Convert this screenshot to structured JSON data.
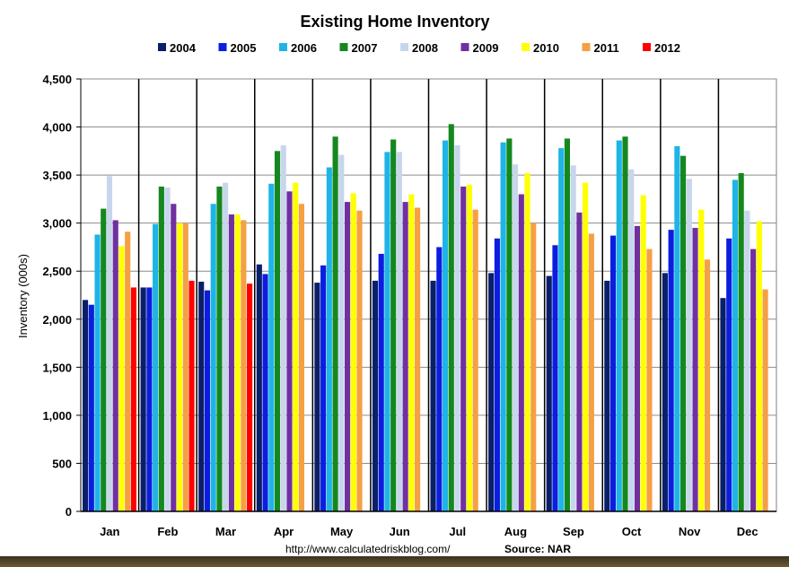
{
  "chart_data": {
    "type": "bar",
    "title": "Existing Home Inventory",
    "ylabel": "Inventory (000s)",
    "xlabel": "",
    "ylim": [
      0,
      4500
    ],
    "yticks": [
      0,
      500,
      1000,
      1500,
      2000,
      2500,
      3000,
      3500,
      4000,
      4500
    ],
    "ytick_labels": [
      "0",
      "500",
      "1,000",
      "1,500",
      "2,000",
      "2,500",
      "3,000",
      "3,500",
      "4,000",
      "4,500"
    ],
    "grid": "horizontal",
    "legend_position": "top",
    "categories": [
      "Jan",
      "Feb",
      "Mar",
      "Apr",
      "May",
      "Jun",
      "Jul",
      "Aug",
      "Sep",
      "Oct",
      "Nov",
      "Dec"
    ],
    "series": [
      {
        "name": "2004",
        "color": "#0a1f6b",
        "values": [
          2200,
          2330,
          2390,
          2570,
          2380,
          2400,
          2400,
          2480,
          2450,
          2400,
          2480,
          2220
        ]
      },
      {
        "name": "2005",
        "color": "#0b1ee0",
        "values": [
          2150,
          2330,
          2300,
          2470,
          2560,
          2680,
          2750,
          2840,
          2770,
          2870,
          2930,
          2840
        ]
      },
      {
        "name": "2006",
        "color": "#1eb4e6",
        "values": [
          2880,
          2990,
          3200,
          3410,
          3580,
          3740,
          3860,
          3840,
          3780,
          3860,
          3800,
          3450
        ]
      },
      {
        "name": "2007",
        "color": "#14881e",
        "values": [
          3150,
          3380,
          3380,
          3750,
          3900,
          3870,
          4030,
          3880,
          3880,
          3900,
          3700,
          3520
        ]
      },
      {
        "name": "2008",
        "color": "#c8d6ec",
        "values": [
          3490,
          3370,
          3420,
          3810,
          3710,
          3740,
          3810,
          3610,
          3600,
          3560,
          3460,
          3130
        ]
      },
      {
        "name": "2009",
        "color": "#7030a0",
        "values": [
          3030,
          3200,
          3090,
          3330,
          3220,
          3220,
          3380,
          3300,
          3110,
          2970,
          2950,
          2730
        ]
      },
      {
        "name": "2010",
        "color": "#ffff00",
        "values": [
          2760,
          3000,
          3090,
          3420,
          3310,
          3300,
          3400,
          3520,
          3420,
          3290,
          3140,
          3020
        ]
      },
      {
        "name": "2011",
        "color": "#f5a043",
        "values": [
          2910,
          3000,
          3030,
          3200,
          3130,
          3160,
          3140,
          3000,
          2890,
          2730,
          2620,
          2310
        ]
      },
      {
        "name": "2012",
        "color": "#ff0000",
        "values": [
          2330,
          2400,
          2370,
          null,
          null,
          null,
          null,
          null,
          null,
          null,
          null,
          null
        ]
      }
    ]
  },
  "footer": {
    "source_url": "http://www.calculatedriskblog.com/",
    "source_label": "Source: NAR"
  }
}
